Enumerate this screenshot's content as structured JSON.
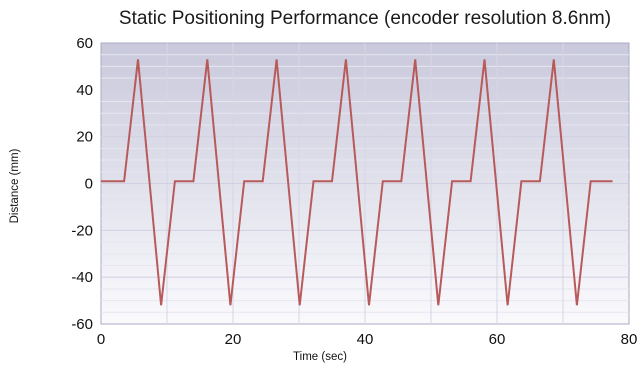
{
  "chart_data": {
    "type": "line",
    "title": "Static Positioning Performance (encoder resolution 8.6nm)",
    "xlabel": "Time (sec)",
    "ylabel": "Distance (mm)",
    "xlim": [
      0,
      80
    ],
    "ylim": [
      -60,
      60
    ],
    "x_ticks": [
      "0",
      "20",
      "40",
      "60",
      "80"
    ],
    "y_ticks": [
      "60",
      "40",
      "20",
      "0",
      "-20",
      "-40",
      "-60"
    ],
    "grid": true,
    "line_color": "#b85a5a",
    "background_gradient": [
      "#c9c9dc",
      "#fafafd"
    ],
    "series": [
      {
        "name": "",
        "points": [
          [
            3.5,
            0
          ],
          [
            5.6,
            0.7
          ],
          [
            5.6,
            0
          ],
          [
            5.7,
            0
          ],
          [
            5.7,
            0
          ],
          [
            0,
            1
          ],
          [
            3.5,
            1
          ],
          [
            5.6,
            53
          ],
          [
            9.1,
            -52
          ],
          [
            11.2,
            1
          ],
          [
            14.0,
            1
          ],
          [
            16.1,
            53
          ],
          [
            19.6,
            -52
          ],
          [
            21.7,
            1
          ],
          [
            24.5,
            1
          ],
          [
            26.6,
            53
          ],
          [
            30.1,
            -52
          ],
          [
            32.2,
            1
          ],
          [
            35.0,
            1
          ],
          [
            37.1,
            53
          ],
          [
            40.6,
            -52
          ],
          [
            42.7,
            1
          ],
          [
            45.5,
            1
          ],
          [
            47.6,
            53
          ],
          [
            51.1,
            -52
          ],
          [
            53.2,
            1
          ],
          [
            56.0,
            1
          ],
          [
            58.1,
            53
          ],
          [
            61.6,
            -52
          ],
          [
            63.7,
            1
          ],
          [
            66.5,
            1
          ],
          [
            68.6,
            53
          ],
          [
            72.1,
            -52
          ],
          [
            74.2,
            1
          ],
          [
            77.5,
            1
          ]
        ]
      }
    ]
  }
}
